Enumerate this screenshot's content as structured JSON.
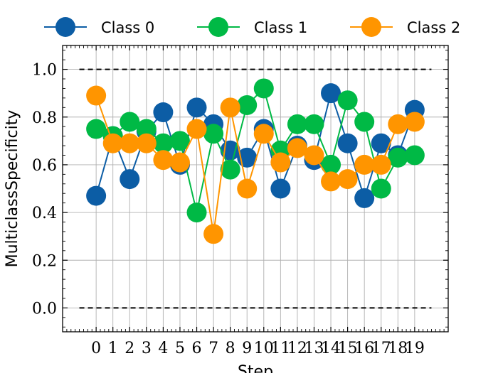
{
  "chart_data": {
    "type": "line",
    "title": "",
    "xlabel": "Step",
    "ylabel": "MulticlassSpecificity",
    "x": [
      0,
      1,
      2,
      3,
      4,
      5,
      6,
      7,
      8,
      9,
      10,
      11,
      12,
      13,
      14,
      15,
      16,
      17,
      18,
      19
    ],
    "xlim": [
      -2,
      21
    ],
    "ylim": [
      -0.1,
      1.1
    ],
    "yticks": [
      0.0,
      0.2,
      0.4,
      0.6,
      0.8,
      1.0
    ],
    "ytick_labels": [
      "0.0",
      "0.2",
      "0.4",
      "0.6",
      "0.8",
      "1.0"
    ],
    "grid": true,
    "legend_position": "top",
    "reference_lines": [
      0.0,
      1.0
    ],
    "series": [
      {
        "name": "Class 0",
        "color": "#0C5DA5",
        "values": [
          0.47,
          0.72,
          0.54,
          0.74,
          0.82,
          0.6,
          0.84,
          0.77,
          0.66,
          0.63,
          0.75,
          0.5,
          0.68,
          0.62,
          0.9,
          0.69,
          0.46,
          0.69,
          0.64,
          0.83
        ]
      },
      {
        "name": "Class 1",
        "color": "#00B945",
        "values": [
          0.75,
          0.72,
          0.78,
          0.75,
          0.69,
          0.7,
          0.4,
          0.73,
          0.58,
          0.85,
          0.92,
          0.66,
          0.77,
          0.77,
          0.6,
          0.87,
          0.78,
          0.5,
          0.63,
          0.64
        ]
      },
      {
        "name": "Class 2",
        "color": "#FF9500",
        "values": [
          0.89,
          0.69,
          0.69,
          0.69,
          0.62,
          0.61,
          0.75,
          0.31,
          0.84,
          0.5,
          0.73,
          0.61,
          0.67,
          0.64,
          0.53,
          0.54,
          0.6,
          0.6,
          0.77,
          0.78
        ]
      }
    ]
  }
}
